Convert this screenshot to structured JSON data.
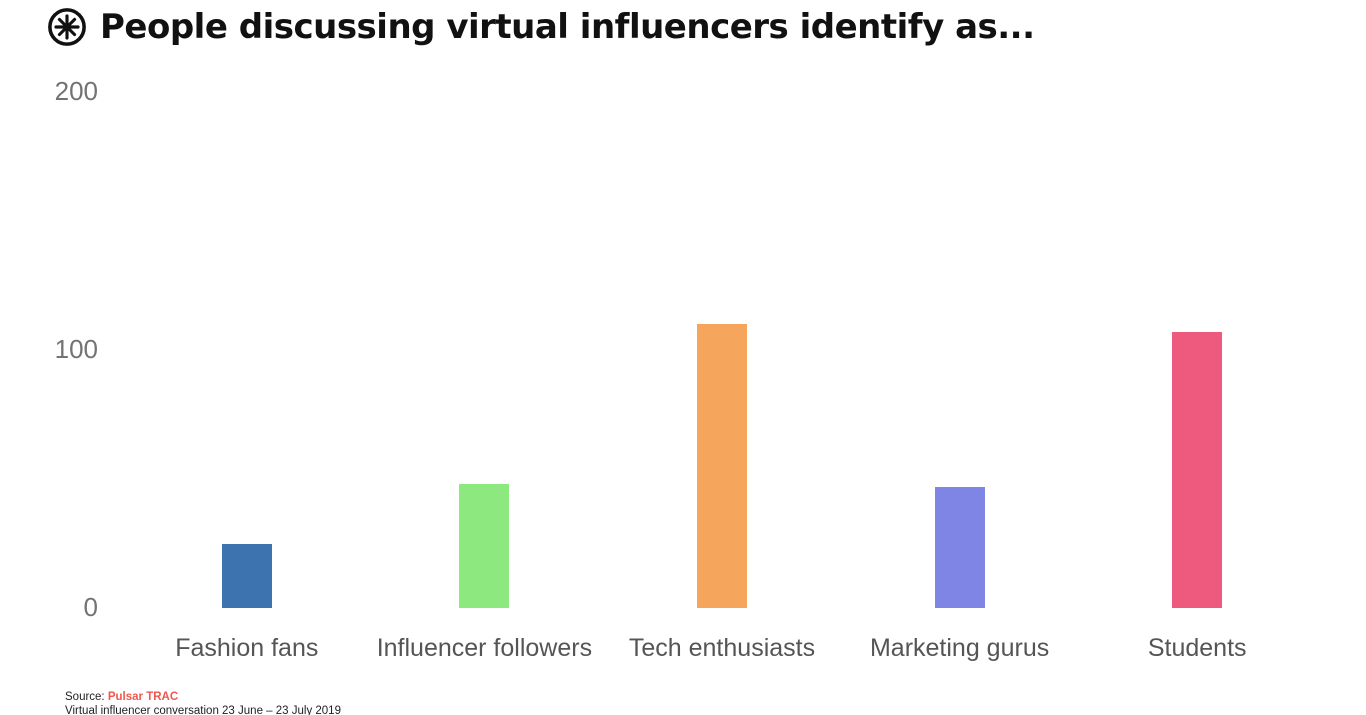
{
  "header": {
    "logo_icon": "circled-asterisk-icon",
    "title": "People discussing virtual influencers identify as..."
  },
  "chart_data": {
    "type": "bar",
    "title": "People discussing virtual influencers identify as...",
    "categories": [
      "Fashion fans",
      "Influencer followers",
      "Tech enthusiasts",
      "Marketing gurus",
      "Students"
    ],
    "values": [
      25,
      48,
      110,
      47,
      107
    ],
    "bar_colors": [
      "#3D73AF",
      "#8CE87F",
      "#F5A55C",
      "#7F85E5",
      "#EE5A7E"
    ],
    "ylim": [
      0,
      200
    ],
    "yticks": [
      0,
      100,
      200
    ],
    "xlabel": "",
    "ylabel": "",
    "grid": false,
    "legend": false,
    "text_color_axis": "#737373",
    "text_color_categories": "#555555"
  },
  "footer": {
    "source_label": "Source:",
    "source_name": "Pulsar TRAC",
    "source_color": "#F0574D",
    "subtitle": "Virtual influencer conversation 23 June – 23 July 2019"
  }
}
